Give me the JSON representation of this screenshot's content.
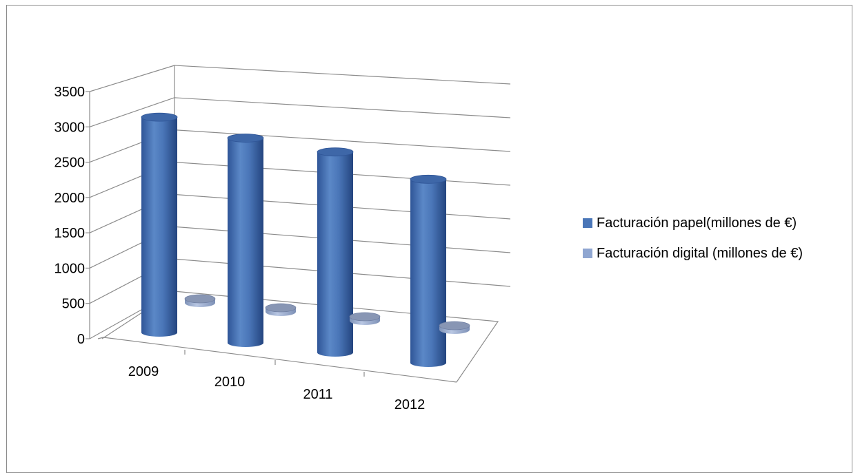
{
  "chart_data": {
    "type": "bar",
    "variant": "3d-cylinder",
    "categories": [
      "2009",
      "2010",
      "2011",
      "2012"
    ],
    "series": [
      {
        "name": "Facturación papel(millones de €)",
        "values": [
          3050,
          2900,
          2840,
          2600
        ],
        "color": "#4a76b8"
      },
      {
        "name": "Facturación digital (millones de €)",
        "values": [
          0,
          0,
          0,
          0
        ],
        "color": "#8fa6d1"
      }
    ],
    "ylim": [
      0,
      3500
    ],
    "yticks": [
      "0",
      "500",
      "1000",
      "1500",
      "2000",
      "2500",
      "3000",
      "3500"
    ],
    "grid": true,
    "legend_position": "right"
  }
}
